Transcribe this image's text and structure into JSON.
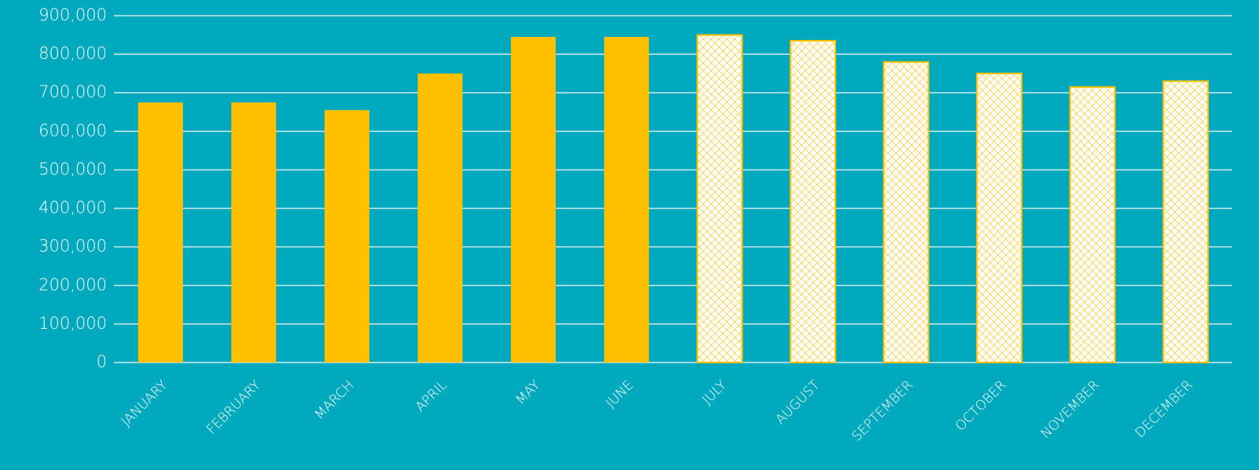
{
  "chart_data": {
    "type": "bar",
    "categories": [
      "JANUARY",
      "FEBRUARY",
      "MARCH",
      "APRIL",
      "MAY",
      "JUNE",
      "JULY",
      "AUGUST",
      "SEPTEMBER",
      "OCTOBER",
      "NOVEMBER",
      "DECEMBER"
    ],
    "values": [
      675000,
      675000,
      655000,
      750000,
      845000,
      845000,
      850000,
      835000,
      780000,
      750000,
      715000,
      730000
    ],
    "fill_styles": [
      "solid",
      "solid",
      "solid",
      "solid",
      "solid",
      "solid",
      "hatched",
      "hatched",
      "hatched",
      "hatched",
      "hatched",
      "hatched"
    ],
    "color": "#ffc000",
    "ylim": [
      0,
      900000
    ],
    "yticks": [
      0,
      {
        "value": 100000,
        "label": "100,000"
      },
      {
        "value": 200000,
        "label": "200,000"
      },
      {
        "value": 300000,
        "label": "300,000"
      },
      {
        "value": 400000,
        "label": "400,000"
      },
      {
        "value": 500000,
        "label": "500,000"
      },
      {
        "value": 600000,
        "label": "600,000"
      },
      {
        "value": 700000,
        "label": "700,000"
      },
      {
        "value": 800000,
        "label": "800,000"
      },
      {
        "value": 900000,
        "label": "900,000"
      }
    ],
    "grid": true
  }
}
